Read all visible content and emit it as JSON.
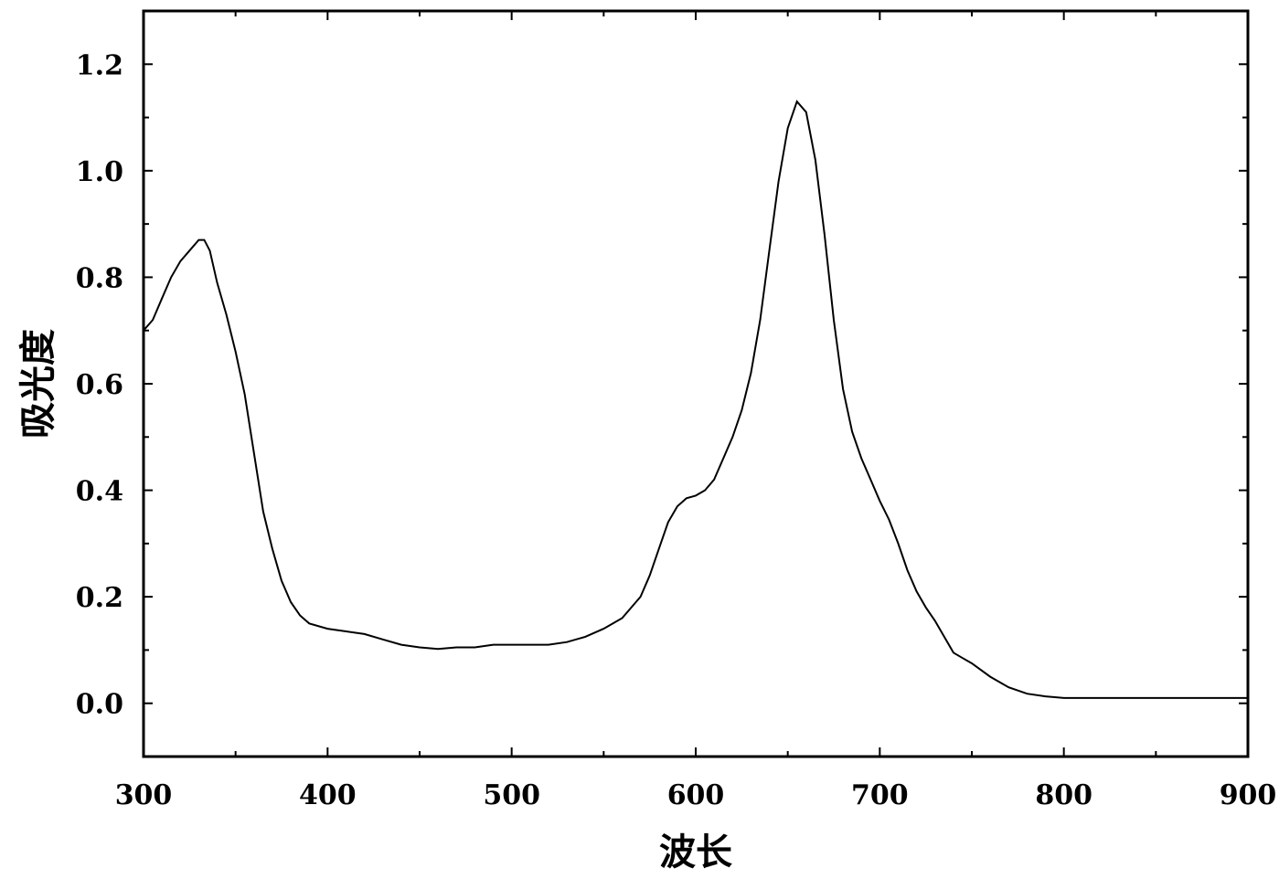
{
  "chart_data": {
    "type": "line",
    "title": "",
    "xlabel": "波长",
    "ylabel": "吸光度",
    "xlim": [
      300,
      900
    ],
    "ylim": [
      -0.1,
      1.3
    ],
    "x_ticks": [
      300,
      400,
      500,
      600,
      700,
      800,
      900
    ],
    "y_ticks": [
      0.0,
      0.2,
      0.4,
      0.6,
      0.8,
      1.0,
      1.2
    ],
    "x_tick_labels": [
      "300",
      "400",
      "500",
      "600",
      "700",
      "800",
      "900"
    ],
    "y_tick_labels": [
      "0.0",
      "0.2",
      "0.4",
      "0.6",
      "0.8",
      "1.0",
      "1.2"
    ],
    "grid": false,
    "legend": "none",
    "line_color": "#000000",
    "series": [
      {
        "x": [
          300,
          305,
          310,
          315,
          320,
          325,
          330,
          333,
          336,
          340,
          345,
          350,
          355,
          360,
          365,
          370,
          375,
          380,
          385,
          390,
          400,
          410,
          420,
          430,
          440,
          450,
          460,
          470,
          480,
          490,
          500,
          510,
          520,
          530,
          540,
          550,
          560,
          570,
          575,
          580,
          585,
          590,
          595,
          600,
          605,
          610,
          615,
          620,
          625,
          630,
          635,
          640,
          645,
          650,
          655,
          660,
          665,
          670,
          675,
          680,
          685,
          690,
          695,
          700,
          705,
          710,
          715,
          720,
          725,
          730,
          740,
          745,
          750,
          760,
          770,
          780,
          790,
          800,
          850,
          900
        ],
        "y": [
          0.7,
          0.72,
          0.76,
          0.8,
          0.83,
          0.85,
          0.87,
          0.87,
          0.85,
          0.79,
          0.73,
          0.66,
          0.58,
          0.47,
          0.36,
          0.29,
          0.23,
          0.19,
          0.165,
          0.15,
          0.14,
          0.135,
          0.13,
          0.12,
          0.11,
          0.105,
          0.102,
          0.105,
          0.105,
          0.11,
          0.11,
          0.11,
          0.11,
          0.115,
          0.125,
          0.14,
          0.16,
          0.2,
          0.24,
          0.29,
          0.34,
          0.37,
          0.385,
          0.39,
          0.4,
          0.42,
          0.46,
          0.5,
          0.55,
          0.62,
          0.72,
          0.85,
          0.98,
          1.08,
          1.13,
          1.11,
          1.02,
          0.88,
          0.72,
          0.59,
          0.51,
          0.46,
          0.42,
          0.38,
          0.345,
          0.3,
          0.25,
          0.21,
          0.18,
          0.155,
          0.095,
          0.085,
          0.075,
          0.05,
          0.03,
          0.018,
          0.013,
          0.01,
          0.01,
          0.01
        ]
      }
    ]
  }
}
